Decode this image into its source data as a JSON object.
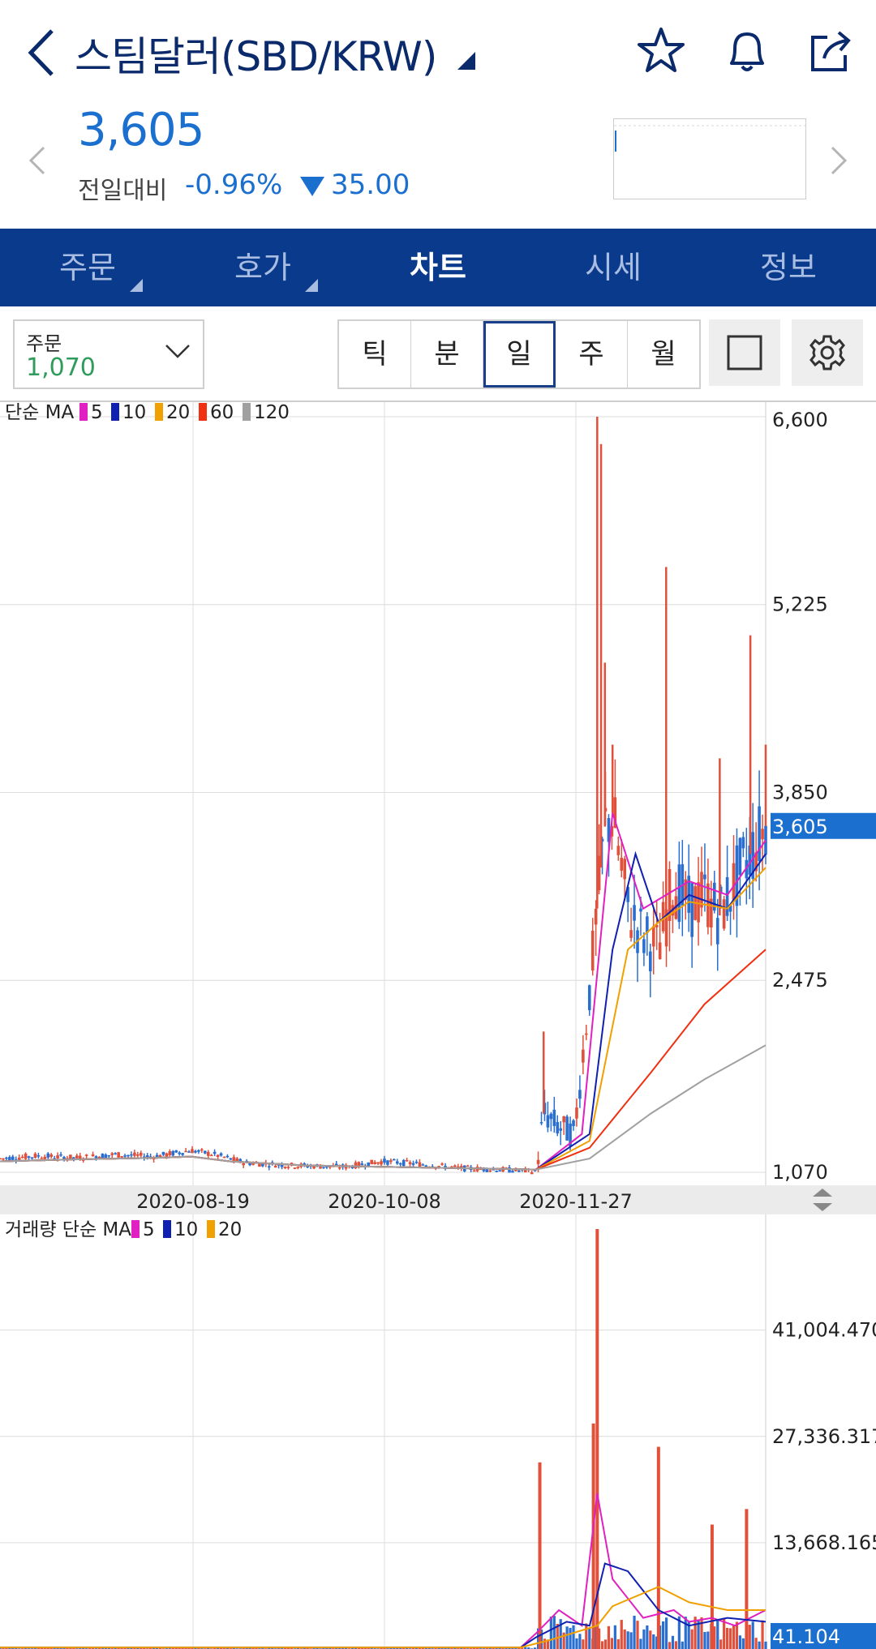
{
  "header": {
    "title": "스팀달러(SBD/KRW)",
    "price": "3,605",
    "change_label": "전일대비",
    "change_pct": "-0.96%",
    "change_abs": "35.00",
    "icons": [
      "back-chevron-icon",
      "dropdown-triangle-icon",
      "star-icon",
      "bell-icon",
      "share-icon",
      "prev-chevron-icon",
      "next-chevron-icon"
    ],
    "colors": {
      "title": "#0b2a6b",
      "price_down": "#1a6fcf",
      "tab_bar": "#0a3a8c"
    }
  },
  "tabs": [
    {
      "label": "주문",
      "active": false,
      "has_submenu": true
    },
    {
      "label": "호가",
      "active": false,
      "has_submenu": true
    },
    {
      "label": "차트",
      "active": true,
      "has_submenu": false
    },
    {
      "label": "시세",
      "active": false,
      "has_submenu": false
    },
    {
      "label": "정보",
      "active": false,
      "has_submenu": false
    }
  ],
  "toolbar": {
    "order_label": "주문",
    "order_value": "1,070",
    "periods": [
      {
        "label": "틱",
        "active": false
      },
      {
        "label": "분",
        "active": false
      },
      {
        "label": "일",
        "active": true
      },
      {
        "label": "주",
        "active": false
      },
      {
        "label": "월",
        "active": false
      }
    ],
    "icons": [
      "square-icon",
      "gear-icon"
    ]
  },
  "chart_data": [
    {
      "type": "candlestick",
      "legend_title": "단순 MA",
      "ma_legend": [
        {
          "name": "5",
          "color": "#e020c0"
        },
        {
          "name": "10",
          "color": "#1020b0"
        },
        {
          "name": "20",
          "color": "#f0a000"
        },
        {
          "name": "60",
          "color": "#f03010"
        },
        {
          "name": "120",
          "color": "#a0a0a0"
        }
      ],
      "y_ticks": [
        "6,600",
        "5,225",
        "3,850",
        "2,475",
        "1,070"
      ],
      "ylim": [
        1070,
        6600
      ],
      "x_ticks": [
        "2020-08-19",
        "2020-10-08",
        "2020-11-27"
      ],
      "current_price": "3,605",
      "current_value": 3605,
      "price_path": [
        [
          0,
          1170
        ],
        [
          0.05,
          1190
        ],
        [
          0.1,
          1175
        ],
        [
          0.15,
          1200
        ],
        [
          0.2,
          1185
        ],
        [
          0.25,
          1230
        ],
        [
          0.28,
          1200
        ],
        [
          0.32,
          1140
        ],
        [
          0.38,
          1120
        ],
        [
          0.45,
          1110
        ],
        [
          0.5,
          1150
        ],
        [
          0.55,
          1130
        ],
        [
          0.6,
          1100
        ],
        [
          0.65,
          1090
        ],
        [
          0.7,
          1075
        ],
        [
          0.71,
          1500
        ],
        [
          0.73,
          1400
        ],
        [
          0.75,
          1350
        ],
        [
          0.77,
          2400
        ],
        [
          0.79,
          3600
        ],
        [
          0.8,
          3700
        ],
        [
          0.82,
          3000
        ],
        [
          0.84,
          2800
        ],
        [
          0.86,
          2700
        ],
        [
          0.88,
          3200
        ],
        [
          0.9,
          3000
        ],
        [
          0.92,
          3100
        ],
        [
          0.94,
          2950
        ],
        [
          0.96,
          3200
        ],
        [
          0.98,
          3400
        ],
        [
          1.0,
          3605
        ]
      ],
      "spikes": [
        [
          0.71,
          2100
        ],
        [
          0.78,
          6600
        ],
        [
          0.785,
          6400
        ],
        [
          0.79,
          4800
        ],
        [
          0.8,
          4200
        ],
        [
          0.87,
          5500
        ],
        [
          0.94,
          4100
        ],
        [
          0.98,
          5000
        ],
        [
          1.0,
          4200
        ]
      ],
      "ma_paths": {
        "5": [
          [
            0.7,
            1090
          ],
          [
            0.76,
            1350
          ],
          [
            0.8,
            3700
          ],
          [
            0.84,
            3000
          ],
          [
            0.9,
            3200
          ],
          [
            0.95,
            3100
          ],
          [
            1.0,
            3500
          ]
        ],
        "10": [
          [
            0.7,
            1090
          ],
          [
            0.77,
            1350
          ],
          [
            0.8,
            2700
          ],
          [
            0.83,
            3400
          ],
          [
            0.86,
            2900
          ],
          [
            0.9,
            3100
          ],
          [
            0.95,
            3000
          ],
          [
            1.0,
            3400
          ]
        ],
        "20": [
          [
            0.7,
            1090
          ],
          [
            0.77,
            1300
          ],
          [
            0.82,
            2700
          ],
          [
            0.86,
            2900
          ],
          [
            0.9,
            3050
          ],
          [
            0.95,
            3000
          ],
          [
            1.0,
            3300
          ]
        ],
        "60": [
          [
            0.7,
            1090
          ],
          [
            0.77,
            1250
          ],
          [
            0.85,
            1800
          ],
          [
            0.92,
            2300
          ],
          [
            1.0,
            2700
          ]
        ],
        "120": [
          [
            0.7,
            1090
          ],
          [
            0.77,
            1170
          ],
          [
            0.85,
            1500
          ],
          [
            0.92,
            1750
          ],
          [
            1.0,
            2000
          ]
        ]
      }
    },
    {
      "type": "bar",
      "legend_title": "거래량 단순 MA",
      "ma_legend": [
        {
          "name": "5",
          "color": "#e020c0"
        },
        {
          "name": "10",
          "color": "#1020b0"
        },
        {
          "name": "20",
          "color": "#f0a000"
        }
      ],
      "y_ticks": [
        "41,004.470",
        "27,336.317",
        "13,668.165"
      ],
      "current_volume": "41.104",
      "volume_spikes": [
        [
          0.705,
          24000
        ],
        [
          0.775,
          29000
        ],
        [
          0.78,
          54000
        ],
        [
          0.86,
          26000
        ],
        [
          0.93,
          16000
        ],
        [
          0.975,
          18000
        ]
      ]
    }
  ]
}
